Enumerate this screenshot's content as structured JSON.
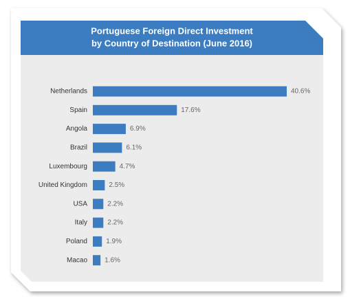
{
  "chart_data": {
    "type": "bar",
    "orientation": "horizontal",
    "title": [
      "Portuguese Foreign Direct Investment",
      "by Country of Destination (June 2016)"
    ],
    "categories": [
      "Netherlands",
      "Spain",
      "Angola",
      "Brazil",
      "Luxembourg",
      "United Kingdom",
      "USA",
      "Italy",
      "Poland",
      "Macao"
    ],
    "values": [
      40.6,
      17.6,
      6.9,
      6.1,
      4.7,
      2.5,
      2.2,
      2.2,
      1.9,
      1.6
    ],
    "value_labels": [
      "40.6%",
      "17.6%",
      "6.9%",
      "6.1%",
      "4.7%",
      "2.5%",
      "2.2%",
      "2.2%",
      "1.9%",
      "1.6%"
    ],
    "color": "#3b7dc0"
  }
}
